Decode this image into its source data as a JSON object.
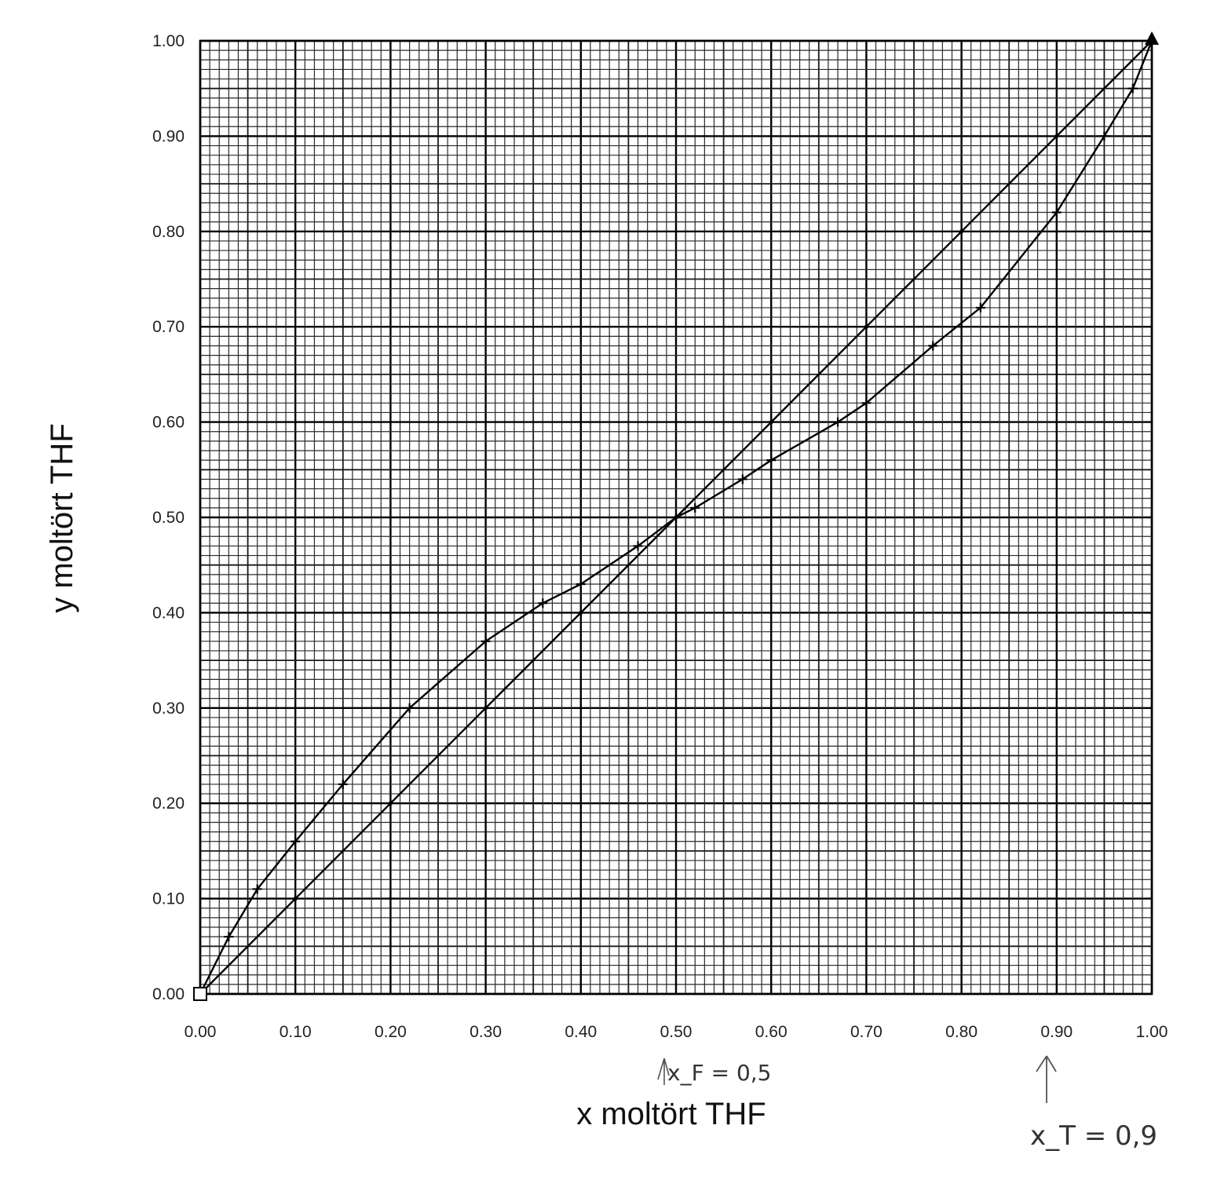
{
  "chart_data": {
    "type": "line",
    "xlabel": "x moltört THF",
    "ylabel": "y moltört THF",
    "xlim": [
      0,
      1
    ],
    "ylim": [
      0,
      1
    ],
    "grid": true,
    "x_ticks": [
      "0.00",
      "0.10",
      "0.20",
      "0.30",
      "0.40",
      "0.50",
      "0.60",
      "0.70",
      "0.80",
      "0.90",
      "1.00"
    ],
    "y_ticks": [
      "0.00",
      "0.10",
      "0.20",
      "0.30",
      "0.40",
      "0.50",
      "0.60",
      "0.70",
      "0.80",
      "0.90",
      "1.00"
    ],
    "series": [
      {
        "x": [
          0.0,
          0.1,
          0.2,
          0.3,
          0.4,
          0.5,
          0.6,
          0.7,
          0.8,
          0.9,
          1.0
        ],
        "y": [
          0.0,
          0.1,
          0.2,
          0.3,
          0.4,
          0.5,
          0.6,
          0.7,
          0.8,
          0.9,
          1.0
        ]
      },
      {
        "x": [
          0.0,
          0.03,
          0.06,
          0.1,
          0.15,
          0.22,
          0.3,
          0.36,
          0.4,
          0.46,
          0.5,
          0.52,
          0.57,
          0.6,
          0.67,
          0.7,
          0.77,
          0.82,
          0.9,
          0.95,
          0.98,
          1.0
        ],
        "y": [
          0.0,
          0.06,
          0.11,
          0.16,
          0.22,
          0.3,
          0.37,
          0.41,
          0.43,
          0.47,
          0.5,
          0.51,
          0.54,
          0.56,
          0.6,
          0.62,
          0.68,
          0.72,
          0.82,
          0.9,
          0.95,
          1.0
        ]
      }
    ],
    "annotations": [
      {
        "text": "x_F = 0,5",
        "x": 0.5,
        "y": -0.08
      },
      {
        "text": "x_T = 0,9",
        "x": 0.9,
        "y": -0.08
      }
    ]
  }
}
